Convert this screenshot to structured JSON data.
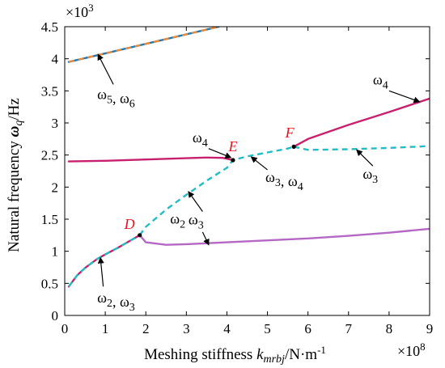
{
  "chart_data": {
    "type": "line",
    "xlabel": "Meshing stiffness",
    "xlabel_symbol": "k",
    "xlabel_subscript": "mrbj",
    "xlabel_unit": "/N·m",
    "xlabel_unit_sup": "-1",
    "ylabel": "Natural frequency",
    "ylabel_symbol": "ω",
    "ylabel_subscript": "q",
    "ylabel_unit": "/Hz",
    "x_multiplier": "×10",
    "x_multiplier_exp": "8",
    "y_multiplier": "×10",
    "y_multiplier_exp": "3",
    "xlim": [
      0,
      9
    ],
    "ylim": [
      0,
      4.5
    ],
    "x_ticks": [
      "0",
      "1",
      "2",
      "3",
      "4",
      "5",
      "6",
      "7",
      "8",
      "9"
    ],
    "x_tick_values": [
      0,
      1,
      2,
      3,
      4,
      5,
      6,
      7,
      8,
      9
    ],
    "y_ticks": [
      "0",
      "0.5",
      "1",
      "1.5",
      "2",
      "2.5",
      "3",
      "3.5",
      "4",
      "4.5"
    ],
    "y_tick_values": [
      0,
      0.5,
      1,
      1.5,
      2,
      2.5,
      3,
      3.5,
      4,
      4.5
    ],
    "grid": false,
    "colors": {
      "magenta": "#c8206e",
      "cyan": "#22bcc4",
      "purple": "#b467c4",
      "orange": "#e88a3c",
      "point_label": "#e8141c"
    },
    "series": [
      {
        "style": "solid",
        "color": "#c8206e",
        "x": [
          0.1,
          1,
          2,
          3,
          3.5,
          3.9,
          4.15
        ],
        "y": [
          2.4,
          2.41,
          2.43,
          2.45,
          2.46,
          2.455,
          2.42
        ]
      },
      {
        "style": "solid",
        "color": "#c8206e",
        "x": [
          5.65,
          6,
          7,
          8,
          9
        ],
        "y": [
          2.63,
          2.75,
          2.97,
          3.17,
          3.38
        ]
      },
      {
        "style": "dashed",
        "color": "#22bcc4",
        "x": [
          1.85,
          2,
          2.5,
          3,
          3.5,
          4,
          4.15,
          4.5,
          5,
          5.5,
          5.65
        ],
        "y": [
          1.25,
          1.38,
          1.65,
          1.88,
          2.1,
          2.3,
          2.42,
          2.48,
          2.54,
          2.6,
          2.63
        ]
      },
      {
        "style": "dashed",
        "color": "#22bcc4",
        "x": [
          5.65,
          6,
          7,
          8,
          9
        ],
        "y": [
          2.63,
          2.58,
          2.59,
          2.61,
          2.64
        ]
      },
      {
        "style": "solid",
        "color": "#b467c4",
        "x": [
          1.85,
          2,
          2.5,
          3,
          4,
          5,
          6,
          7,
          8,
          9
        ],
        "y": [
          1.25,
          1.14,
          1.1,
          1.11,
          1.14,
          1.17,
          1.2,
          1.24,
          1.29,
          1.35
        ]
      },
      {
        "style": "solid",
        "color": "#c8206e",
        "x": [
          0.1,
          0.3,
          0.5,
          0.8,
          1,
          1.3,
          1.6,
          1.85
        ],
        "y": [
          0.45,
          0.62,
          0.74,
          0.88,
          0.95,
          1.05,
          1.16,
          1.25
        ]
      },
      {
        "style": "dashed",
        "color": "#22bcc4",
        "x": [
          0.1,
          0.3,
          0.5,
          0.8,
          1,
          1.3,
          1.6,
          1.85
        ],
        "y": [
          0.45,
          0.62,
          0.74,
          0.88,
          0.95,
          1.05,
          1.16,
          1.25
        ]
      },
      {
        "style": "solid",
        "color": "#1f7ab8",
        "x": [
          0.1,
          3.8
        ],
        "y": [
          3.95,
          4.5
        ]
      },
      {
        "style": "dashed",
        "color": "#e88a3c",
        "x": [
          0.1,
          3.8
        ],
        "y": [
          3.95,
          4.5
        ]
      }
    ],
    "points": [
      {
        "label": "D",
        "x": 1.85,
        "y": 1.25,
        "label_dx": 1.6,
        "label_dy": 1.35
      },
      {
        "label": "E",
        "x": 4.15,
        "y": 2.42,
        "label_dx": 4.15,
        "label_dy": 2.56
      },
      {
        "label": "F",
        "x": 5.65,
        "y": 2.63,
        "label_dx": 5.55,
        "label_dy": 2.77
      }
    ],
    "annotations": [
      {
        "parts": [
          {
            "t": "ω",
            "sub": "5"
          },
          {
            "t": ", ω",
            "sub": "6"
          }
        ],
        "text_x": 0.8,
        "text_y": 3.37,
        "arrow_from": [
          1.2,
          3.6
        ],
        "arrow_to": [
          0.82,
          4.07
        ]
      },
      {
        "parts": [
          {
            "t": "ω",
            "sub": "4"
          }
        ],
        "text_x": 7.6,
        "text_y": 3.6,
        "arrow_from": [
          8.0,
          3.5
        ],
        "arrow_to": [
          8.75,
          3.33
        ]
      },
      {
        "parts": [
          {
            "t": "ω",
            "sub": "4"
          }
        ],
        "text_x": 3.15,
        "text_y": 2.7,
        "arrow_from": [
          3.55,
          2.6
        ],
        "arrow_to": [
          4.1,
          2.46
        ]
      },
      {
        "parts": [
          {
            "t": "ω",
            "sub": "3"
          },
          {
            "t": ", ω",
            "sub": "4"
          }
        ],
        "text_x": 4.95,
        "text_y": 2.08,
        "arrow_from": [
          5.0,
          2.27
        ],
        "arrow_to": [
          4.6,
          2.47
        ]
      },
      {
        "parts": [
          {
            "t": "ω",
            "sub": "3"
          }
        ],
        "text_x": 7.35,
        "text_y": 2.13,
        "arrow_from": [
          7.6,
          2.33
        ],
        "arrow_to": [
          7.2,
          2.58
        ]
      },
      {
        "parts": [
          {
            "t": "ω",
            "sub": "3"
          }
        ],
        "text_x": 3.05,
        "text_y": 1.42,
        "arrow_from": [
          3.4,
          1.62
        ],
        "arrow_to": [
          3.05,
          1.93
        ]
      },
      {
        "parts": [
          {
            "t": "ω",
            "sub": "2"
          }
        ],
        "text_x": 2.6,
        "text_y": 1.43,
        "arrow_from": [
          3.4,
          1.3
        ],
        "arrow_to": [
          3.55,
          1.1
        ]
      },
      {
        "parts": [
          {
            "t": "ω",
            "sub": "2"
          },
          {
            "t": ", ω",
            "sub": "3"
          }
        ],
        "text_x": 0.8,
        "text_y": 0.2,
        "arrow_from": [
          0.95,
          0.45
        ],
        "arrow_to": [
          0.88,
          0.9
        ]
      }
    ]
  }
}
